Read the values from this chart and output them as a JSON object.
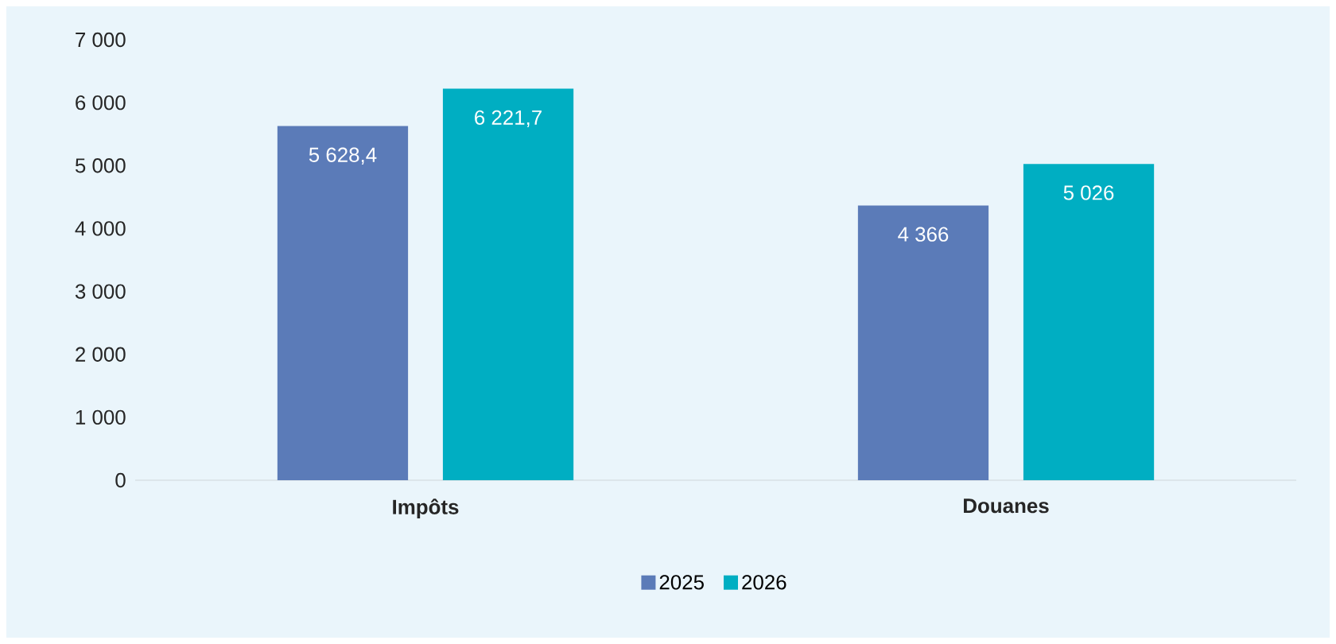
{
  "chart_data": {
    "type": "bar",
    "categories": [
      "Impôts",
      "Douanes"
    ],
    "series": [
      {
        "name": "2025",
        "color": "#5b7bb8",
        "values": [
          5628.4,
          4366
        ],
        "value_labels": [
          "5 628,4",
          "4 366"
        ]
      },
      {
        "name": "2026",
        "color": "#00aec2",
        "values": [
          6221.7,
          5026
        ],
        "value_labels": [
          "6 221,7",
          "5 026"
        ]
      }
    ],
    "ylim": [
      0,
      7000
    ],
    "yticks": [
      {
        "value": 0,
        "label": "0"
      },
      {
        "value": 1000,
        "label": "1 000"
      },
      {
        "value": 2000,
        "label": "2 000"
      },
      {
        "value": 3000,
        "label": "3 000"
      },
      {
        "value": 4000,
        "label": "4 000"
      },
      {
        "value": 5000,
        "label": "5 000"
      },
      {
        "value": 6000,
        "label": "6 000"
      },
      {
        "value": 7000,
        "label": "7 000"
      }
    ],
    "grid": false,
    "legend": "bottom"
  }
}
